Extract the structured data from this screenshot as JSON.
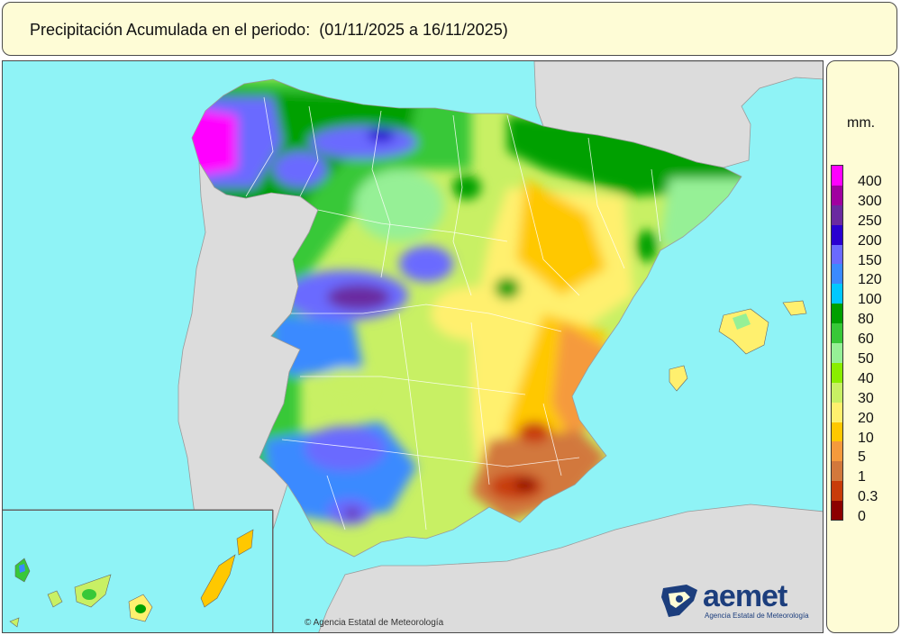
{
  "header": {
    "title": "Precipitación Acumulada en el periodo:  (01/11/2025 a 16/11/2025)"
  },
  "legend": {
    "unit": "mm.",
    "classes": [
      {
        "label": "400",
        "color": "#ff00ff"
      },
      {
        "label": "300",
        "color": "#a000a0"
      },
      {
        "label": "250",
        "color": "#6a2aa0"
      },
      {
        "label": "200",
        "color": "#2a00d0"
      },
      {
        "label": "150",
        "color": "#6a6aff"
      },
      {
        "label": "120",
        "color": "#3a8aff"
      },
      {
        "label": "100",
        "color": "#00c8ff"
      },
      {
        "label": "80",
        "color": "#00a000"
      },
      {
        "label": "60",
        "color": "#38c838"
      },
      {
        "label": "50",
        "color": "#96f096"
      },
      {
        "label": "40",
        "color": "#8aee00"
      },
      {
        "label": "30",
        "color": "#c8f064"
      },
      {
        "label": "20",
        "color": "#fff06e"
      },
      {
        "label": "10",
        "color": "#ffc800"
      },
      {
        "label": "5",
        "color": "#f59a3c"
      },
      {
        "label": "1",
        "color": "#d2783c"
      },
      {
        "label": "0.3",
        "color": "#c83c0a"
      },
      {
        "label": "0",
        "color": "#8c0000"
      }
    ]
  },
  "map": {
    "sea_color": "#8ff3f6",
    "land_outside_color": "#dcdcdc"
  },
  "footer": {
    "copyright": "© Agencia Estatal de Meteorología",
    "logo_word": "aemet",
    "logo_sub": "Agencia Estatal de Meteorología"
  }
}
